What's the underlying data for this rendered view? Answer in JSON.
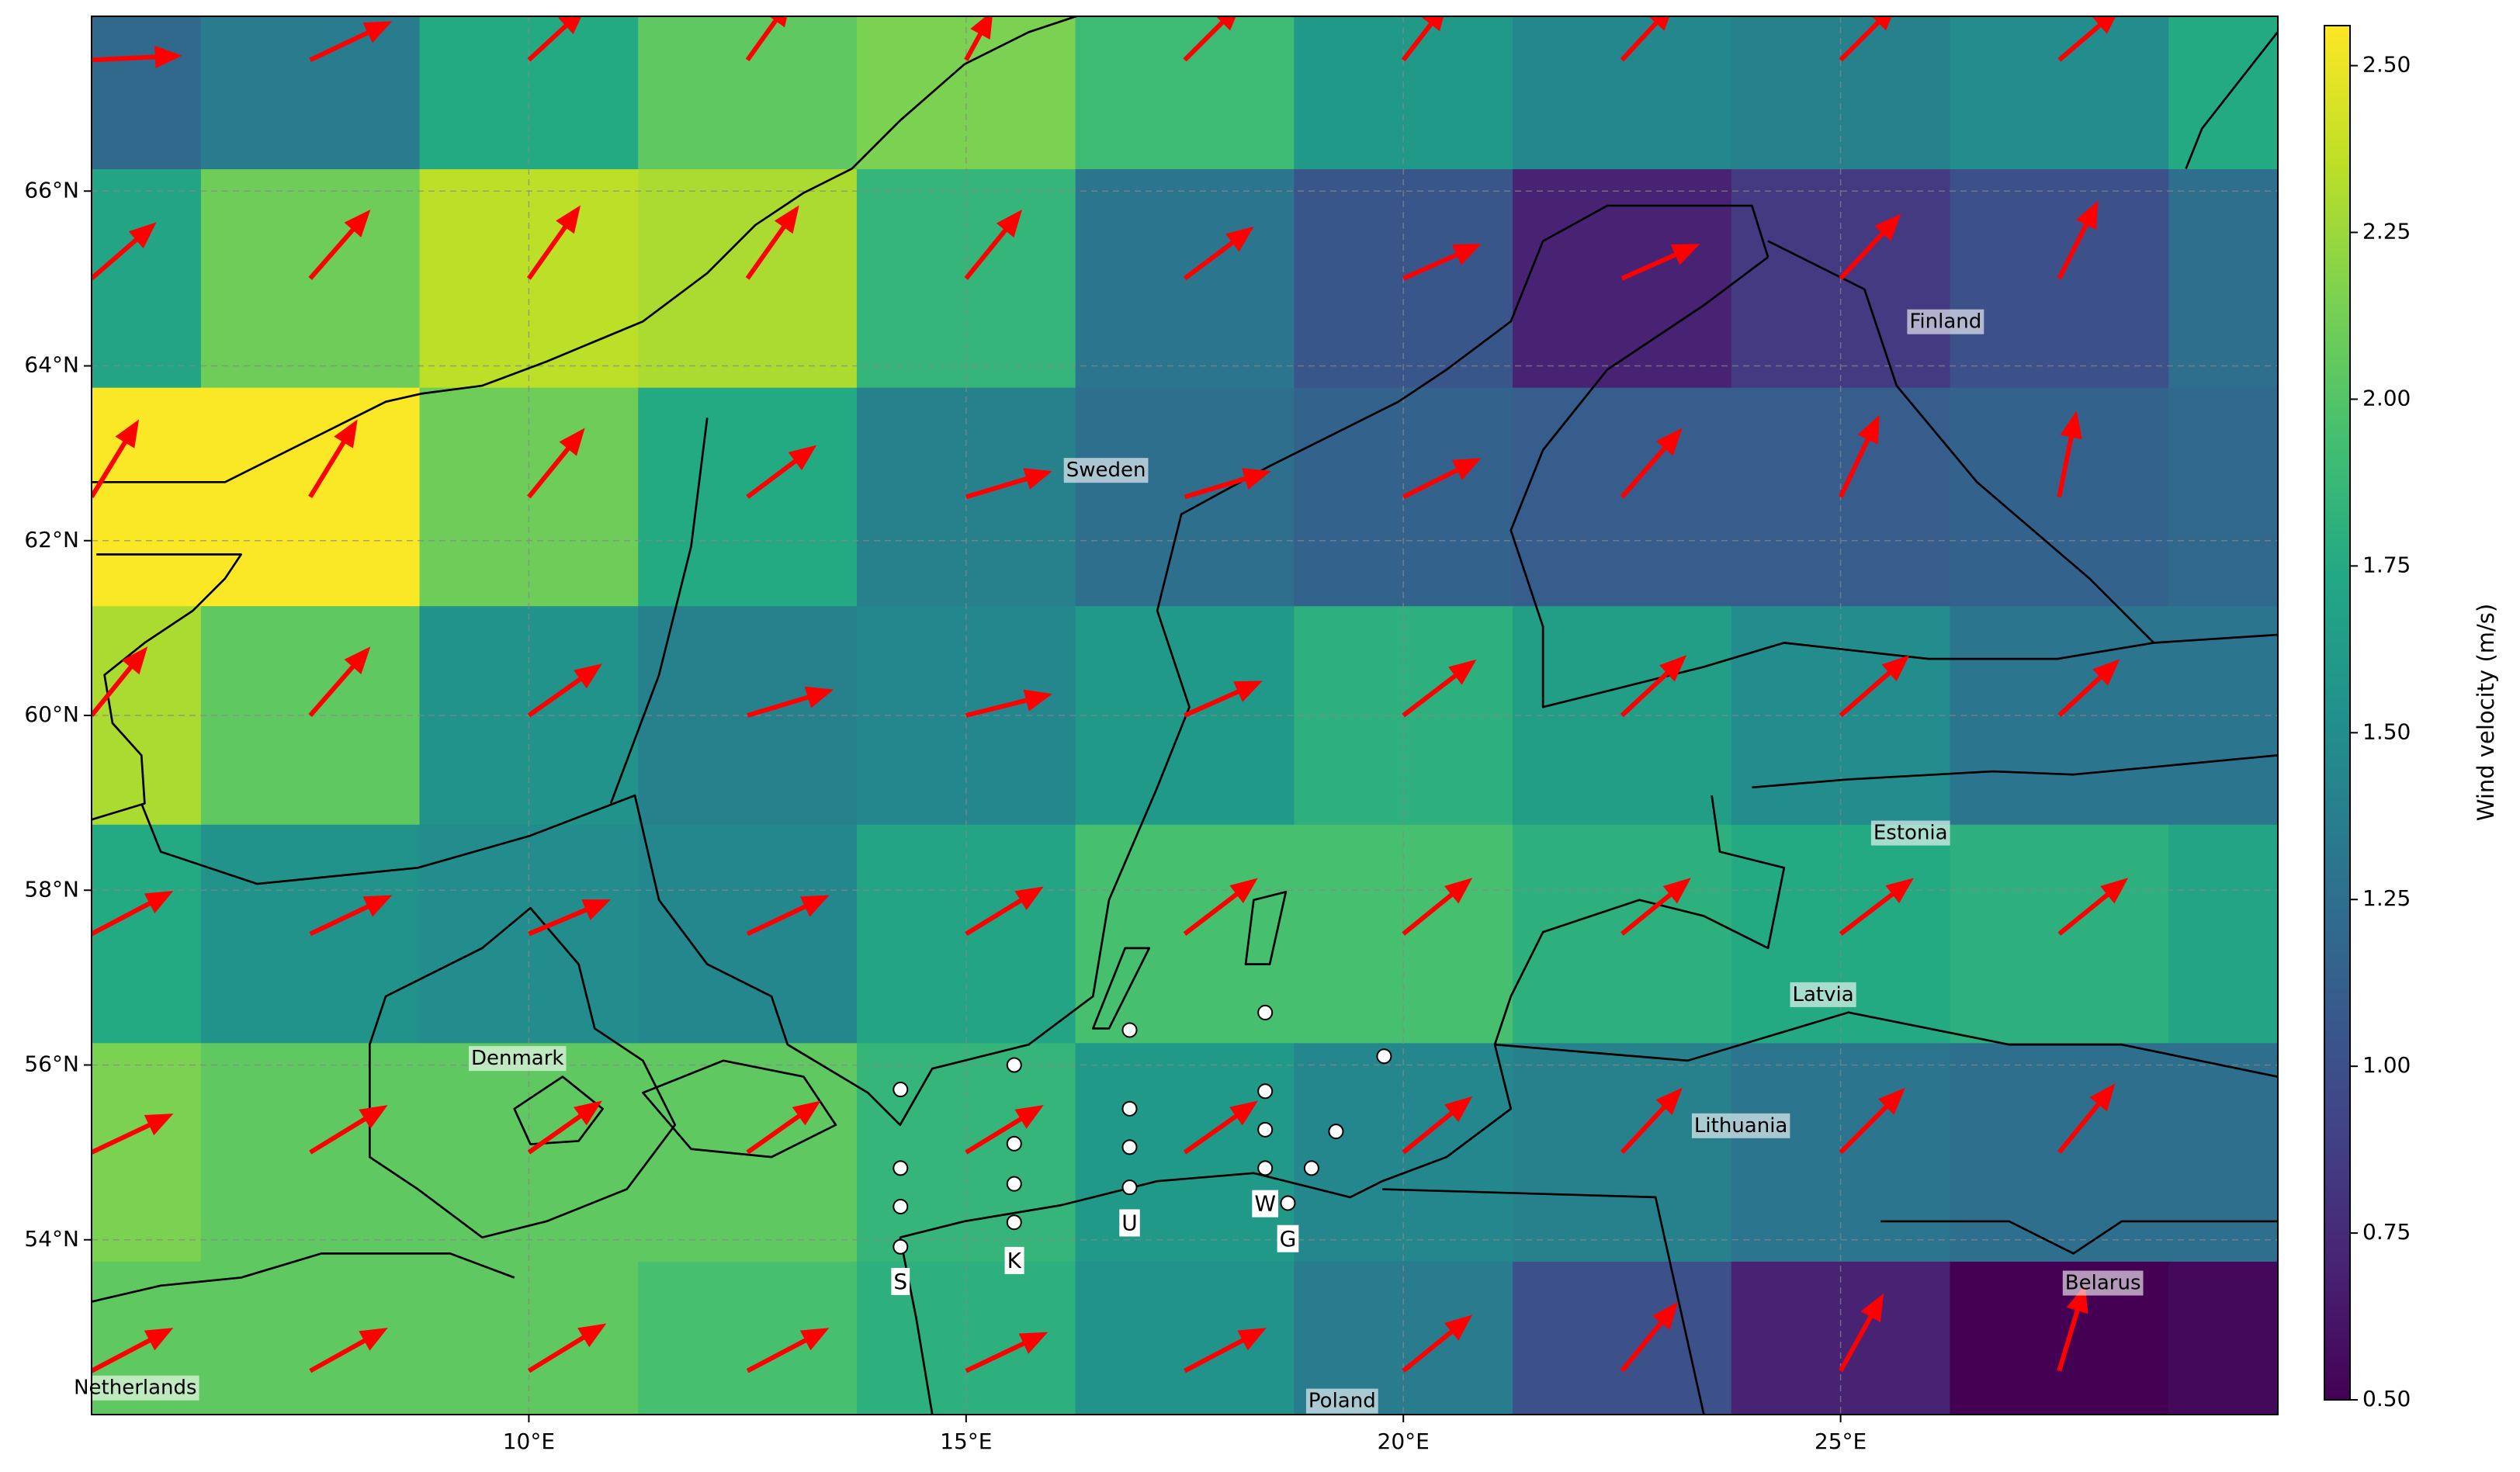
{
  "chart_data": {
    "type": "heatmap",
    "colormap": "viridis",
    "xlim": [
      5,
      30
    ],
    "ylim": [
      52,
      68
    ],
    "xticks": [
      {
        "value": 10,
        "label": "10°E"
      },
      {
        "value": 15,
        "label": "15°E"
      },
      {
        "value": 20,
        "label": "20°E"
      },
      {
        "value": 25,
        "label": "25°E"
      }
    ],
    "yticks": [
      {
        "value": 54,
        "label": "54°N"
      },
      {
        "value": 56,
        "label": "56°N"
      },
      {
        "value": 58,
        "label": "58°N"
      },
      {
        "value": 60,
        "label": "60°N"
      },
      {
        "value": 62,
        "label": "62°N"
      },
      {
        "value": 64,
        "label": "64°N"
      },
      {
        "value": 66,
        "label": "66°N"
      }
    ],
    "grid": true,
    "lons": [
      5,
      7.5,
      10,
      12.5,
      15,
      17.5,
      20,
      22.5,
      25,
      27.5,
      30
    ],
    "lats": [
      67.5,
      65,
      62.5,
      60,
      57.5,
      55,
      52.5
    ],
    "values": [
      [
        1.2,
        1.35,
        1.75,
        2.05,
        2.15,
        1.9,
        1.6,
        1.45,
        1.4,
        1.5,
        1.75
      ],
      [
        1.7,
        2.1,
        2.35,
        2.3,
        1.85,
        1.3,
        1.05,
        0.7,
        0.85,
        1.0,
        1.25
      ],
      [
        2.55,
        2.55,
        2.1,
        1.75,
        1.4,
        1.25,
        1.15,
        1.1,
        1.1,
        1.15,
        1.2
      ],
      [
        2.3,
        2.05,
        1.55,
        1.4,
        1.45,
        1.6,
        1.8,
        1.65,
        1.5,
        1.3,
        1.3
      ],
      [
        1.75,
        1.55,
        1.5,
        1.45,
        1.7,
        1.95,
        1.95,
        1.8,
        1.75,
        1.8,
        1.7
      ],
      [
        2.15,
        2.05,
        2.05,
        2.05,
        1.85,
        1.6,
        1.45,
        1.4,
        1.3,
        1.25,
        1.25
      ],
      [
        2.05,
        2.05,
        2.05,
        1.95,
        1.8,
        1.55,
        1.35,
        1.0,
        0.7,
        0.5,
        0.55
      ]
    ],
    "zlim": [
      0.5,
      2.56
    ],
    "colorbar_label": "Wind velocity (m/s)",
    "colorbar_ticks": [
      {
        "value": 0.5,
        "label": "0.50"
      },
      0.75,
      {
        "value": 1,
        "label": "1.00"
      },
      1.25,
      {
        "value": 1.5,
        "label": "1.50"
      },
      1.75,
      {
        "value": 2,
        "label": "2.00"
      },
      2.25,
      {
        "value": 2.5,
        "label": "2.50"
      }
    ],
    "arrows": {
      "color": "#ff0000",
      "lons": [
        5,
        7.5,
        10,
        12.5,
        15,
        17.5,
        20,
        22.5,
        25,
        27.5
      ],
      "u": [
        [
          2.1,
          1.9,
          1.3,
          1.0,
          0.6,
          1.3,
          1.0,
          1.2,
          1.3,
          1.4
        ],
        [
          1.5,
          1.4,
          1.2,
          1.2,
          1.3,
          1.6,
          1.8,
          1.8,
          1.4,
          0.9
        ],
        [
          1.1,
          1.1,
          1.3,
          1.6,
          2.0,
          2.0,
          1.8,
          1.4,
          0.9,
          0.4
        ],
        [
          1.3,
          1.4,
          1.7,
          2.0,
          2.0,
          1.8,
          1.7,
          1.5,
          1.6,
          1.4
        ],
        [
          1.9,
          1.9,
          1.9,
          1.9,
          1.8,
          1.7,
          1.6,
          1.6,
          1.7,
          1.6
        ],
        [
          1.9,
          1.8,
          1.7,
          1.7,
          1.8,
          1.7,
          1.6,
          1.4,
          1.5,
          1.3
        ],
        [
          1.9,
          1.8,
          1.8,
          1.9,
          1.9,
          1.9,
          1.6,
          1.3,
          1.0,
          0.6
        ]
      ],
      "v": [
        [
          0.1,
          0.9,
          1.2,
          1.4,
          1.1,
          1.3,
          1.3,
          1.3,
          1.3,
          1.2
        ],
        [
          1.3,
          1.6,
          1.7,
          1.7,
          1.6,
          1.2,
          0.8,
          0.8,
          1.5,
          1.8
        ],
        [
          1.8,
          1.8,
          1.6,
          1.2,
          0.6,
          0.6,
          0.9,
          1.6,
          1.9,
          2.0
        ],
        [
          1.6,
          1.6,
          1.2,
          0.6,
          0.5,
          0.8,
          1.3,
          1.4,
          1.4,
          1.3
        ],
        [
          1.0,
          0.9,
          0.8,
          0.9,
          1.1,
          1.3,
          1.3,
          1.3,
          1.3,
          1.3
        ],
        [
          0.9,
          1.1,
          1.2,
          1.2,
          1.1,
          1.2,
          1.3,
          1.5,
          1.5,
          1.6
        ],
        [
          1.0,
          1.0,
          1.1,
          1.0,
          0.9,
          1.0,
          1.3,
          1.6,
          1.8,
          2.0
        ]
      ]
    },
    "stations": {
      "lon": [
        14.25,
        14.25,
        14.25,
        14.25,
        15.55,
        15.55,
        15.55,
        15.55,
        16.87,
        16.87,
        16.87,
        16.87,
        18.42,
        18.42,
        18.42,
        18.42,
        18.68,
        18.95,
        19.23,
        19.78
      ],
      "lat": [
        55.72,
        54.82,
        54.38,
        53.92,
        56.0,
        55.1,
        54.64,
        54.2,
        56.4,
        55.5,
        55.06,
        54.6,
        56.6,
        55.7,
        55.26,
        54.82,
        54.42,
        54.82,
        55.24,
        56.1
      ]
    },
    "station_labels": [
      {
        "label": "S",
        "lon": 14.25,
        "lat": 53.51
      },
      {
        "label": "K",
        "lon": 15.55,
        "lat": 53.75
      },
      {
        "label": "U",
        "lon": 16.87,
        "lat": 54.18
      },
      {
        "label": "W",
        "lon": 18.42,
        "lat": 54.4
      },
      {
        "label": "G",
        "lon": 18.68,
        "lat": 54.0
      }
    ],
    "place_labels": [
      {
        "label": "Finland",
        "lon": 26.2,
        "lat": 64.5
      },
      {
        "label": "Sweden",
        "lon": 16.6,
        "lat": 62.8
      },
      {
        "label": "Estonia",
        "lon": 25.8,
        "lat": 58.65
      },
      {
        "label": "Latvia",
        "lon": 24.8,
        "lat": 56.8
      },
      {
        "label": "Lithuania",
        "lon": 23.86,
        "lat": 55.3
      },
      {
        "label": "Denmark",
        "lon": 9.87,
        "lat": 56.07
      },
      {
        "label": "Belarus",
        "lon": 28.0,
        "lat": 53.5
      },
      {
        "label": "Netherlands",
        "lon": 5.5,
        "lat": 52.3
      },
      {
        "label": "Poland",
        "lon": 19.3,
        "lat": 52.15
      }
    ]
  }
}
